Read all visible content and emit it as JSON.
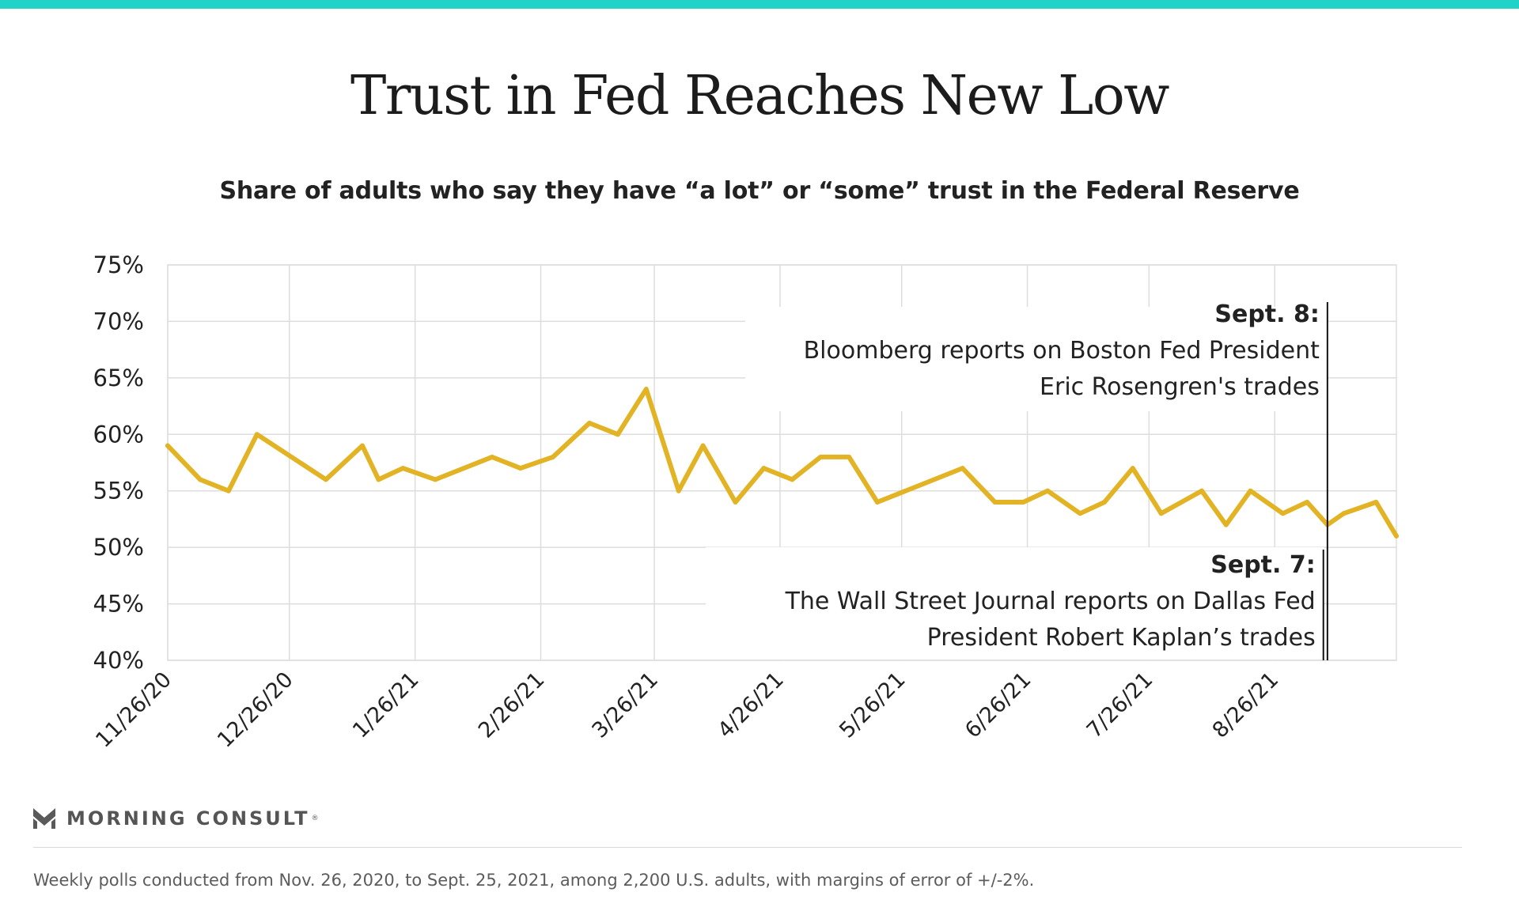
{
  "title": "Trust in Fed Reaches New Low",
  "subtitle": "Share of adults who say they have “a lot” or “some” trust in the Federal Reserve",
  "colors": {
    "accent_bar": "#1fd3c9",
    "line": "#e2b425",
    "grid": "#dddddd",
    "text": "#222222"
  },
  "chart_data": {
    "type": "line",
    "title": "Trust in Fed Reaches New Low",
    "subtitle": "Share of adults who say they have “a lot” or “some” trust in the Federal Reserve",
    "ylim": [
      40,
      75
    ],
    "yticks": [
      "75%",
      "70%",
      "65%",
      "60%",
      "55%",
      "50%",
      "45%",
      "40%"
    ],
    "ytick_values": [
      75,
      70,
      65,
      60,
      55,
      50,
      45,
      40
    ],
    "xlim": [
      "2020-11-26",
      "2021-09-25"
    ],
    "xticks": [
      "11/26/20",
      "12/26/20",
      "1/26/21",
      "2/26/21",
      "3/26/21",
      "4/26/21",
      "5/26/21",
      "6/26/21",
      "7/26/21",
      "8/26/21"
    ],
    "xtick_dates": [
      "2020-11-26",
      "2020-12-26",
      "2021-01-26",
      "2021-02-26",
      "2021-03-26",
      "2021-04-26",
      "2021-05-26",
      "2021-06-26",
      "2021-07-26",
      "2021-08-26"
    ],
    "grid": true,
    "series": [
      {
        "points": [
          [
            "2020-11-26",
            59
          ],
          [
            "2020-12-04",
            56
          ],
          [
            "2020-12-11",
            55
          ],
          [
            "2020-12-18",
            60
          ],
          [
            "2021-01-04",
            56
          ],
          [
            "2021-01-13",
            59
          ],
          [
            "2021-01-17",
            56
          ],
          [
            "2021-01-23",
            57
          ],
          [
            "2021-01-31",
            56
          ],
          [
            "2021-02-07",
            57
          ],
          [
            "2021-02-14",
            58
          ],
          [
            "2021-02-21",
            57
          ],
          [
            "2021-03-01",
            58
          ],
          [
            "2021-03-10",
            61
          ],
          [
            "2021-03-17",
            60
          ],
          [
            "2021-03-24",
            64
          ],
          [
            "2021-04-01",
            55
          ],
          [
            "2021-04-07",
            59
          ],
          [
            "2021-04-15",
            54
          ],
          [
            "2021-04-22",
            57
          ],
          [
            "2021-04-29",
            56
          ],
          [
            "2021-05-06",
            58
          ],
          [
            "2021-05-13",
            58
          ],
          [
            "2021-05-20",
            54
          ],
          [
            "2021-06-10",
            57
          ],
          [
            "2021-06-18",
            54
          ],
          [
            "2021-06-25",
            54
          ],
          [
            "2021-07-01",
            55
          ],
          [
            "2021-07-09",
            53
          ],
          [
            "2021-07-15",
            54
          ],
          [
            "2021-07-22",
            57
          ],
          [
            "2021-07-29",
            53
          ],
          [
            "2021-08-08",
            55
          ],
          [
            "2021-08-14",
            52
          ],
          [
            "2021-08-20",
            55
          ],
          [
            "2021-08-28",
            53
          ],
          [
            "2021-09-03",
            54
          ],
          [
            "2021-09-08",
            52
          ],
          [
            "2021-09-12",
            53
          ],
          [
            "2021-09-20",
            54
          ],
          [
            "2021-09-25",
            51
          ]
        ]
      }
    ],
    "annotations": [
      {
        "date": "2021-09-08",
        "heading": "Sept. 8:",
        "lines": [
          "Bloomberg reports on Boston Fed President",
          "Eric Rosengren's trades"
        ]
      },
      {
        "date": "2021-09-07",
        "heading": "Sept. 7:",
        "lines": [
          "The Wall Street Journal reports on Dallas Fed",
          "President Robert Kaplan’s trades"
        ]
      }
    ]
  },
  "brand": {
    "name": "MORNING CONSULT",
    "reg": "®",
    "logo_icon": "morning-consult-m-logo-icon"
  },
  "footnote": "Weekly polls conducted from Nov. 26, 2020, to Sept. 25, 2021, among 2,200 U.S. adults, with margins of error of +/-2%."
}
